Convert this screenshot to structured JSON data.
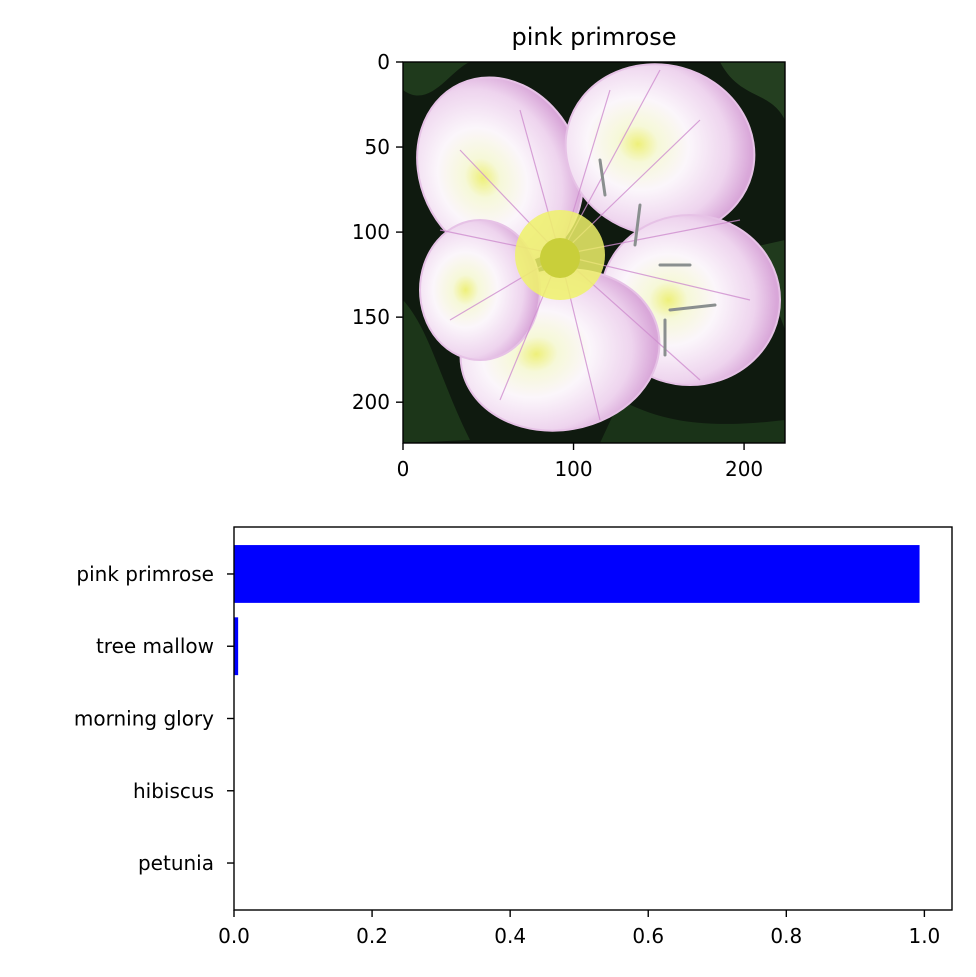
{
  "chart_data": [
    {
      "type": "image",
      "title": "pink primrose",
      "xlim": [
        0,
        224
      ],
      "ylim": [
        224,
        0
      ],
      "xticks": [
        0,
        100,
        200
      ],
      "yticks": [
        0,
        50,
        100,
        150,
        200
      ],
      "xtick_labels": [
        "0",
        "100",
        "200"
      ],
      "ytick_labels": [
        "0",
        "50",
        "100",
        "150",
        "200"
      ],
      "image_content": "flower-photo"
    },
    {
      "type": "bar",
      "orientation": "horizontal",
      "categories": [
        "pink primrose",
        "tree mallow",
        "morning glory",
        "hibiscus",
        "petunia"
      ],
      "values": [
        0.993,
        0.006,
        0.0005,
        0.0002,
        0.0001
      ],
      "xlim": [
        0,
        1.04
      ],
      "xticks": [
        0.0,
        0.2,
        0.4,
        0.6,
        0.8,
        1.0
      ],
      "xtick_labels": [
        "0.0",
        "0.2",
        "0.4",
        "0.6",
        "0.8",
        "1.0"
      ],
      "color": "#0000ff",
      "grid": false
    }
  ]
}
